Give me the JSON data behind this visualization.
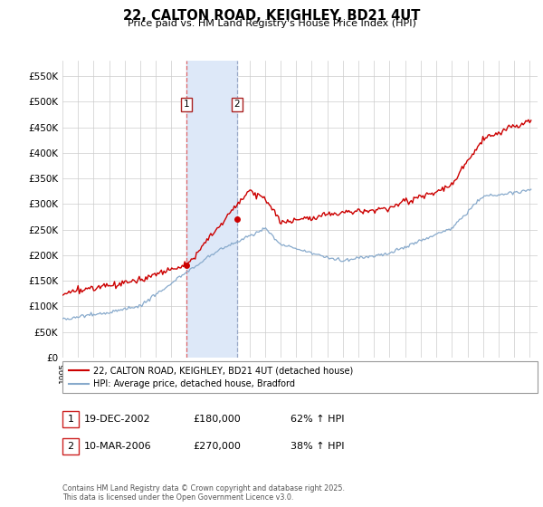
{
  "title": "22, CALTON ROAD, KEIGHLEY, BD21 4UT",
  "subtitle": "Price paid vs. HM Land Registry's House Price Index (HPI)",
  "ylabel_ticks": [
    "£0",
    "£50K",
    "£100K",
    "£150K",
    "£200K",
    "£250K",
    "£300K",
    "£350K",
    "£400K",
    "£450K",
    "£500K",
    "£550K"
  ],
  "ytick_values": [
    0,
    50000,
    100000,
    150000,
    200000,
    250000,
    300000,
    350000,
    400000,
    450000,
    500000,
    550000
  ],
  "ylim": [
    0,
    580000
  ],
  "xmin": 1995,
  "xmax": 2025.5,
  "sale1_x": 2002.97,
  "sale1_y": 180000,
  "sale2_x": 2006.19,
  "sale2_y": 270000,
  "vline1_x": 2002.97,
  "vline2_x": 2006.19,
  "shade_color": "#dde8f8",
  "red_line_color": "#cc0000",
  "blue_line_color": "#88aacc",
  "legend1": "22, CALTON ROAD, KEIGHLEY, BD21 4UT (detached house)",
  "legend2": "HPI: Average price, detached house, Bradford",
  "table_rows": [
    {
      "num": "1",
      "date": "19-DEC-2002",
      "price": "£180,000",
      "hpi": "62% ↑ HPI"
    },
    {
      "num": "2",
      "date": "10-MAR-2006",
      "price": "£270,000",
      "hpi": "38% ↑ HPI"
    }
  ],
  "footer": "Contains HM Land Registry data © Crown copyright and database right 2025.\nThis data is licensed under the Open Government Licence v3.0.",
  "background_color": "#ffffff",
  "plot_bg_color": "#ffffff",
  "grid_color": "#cccccc"
}
